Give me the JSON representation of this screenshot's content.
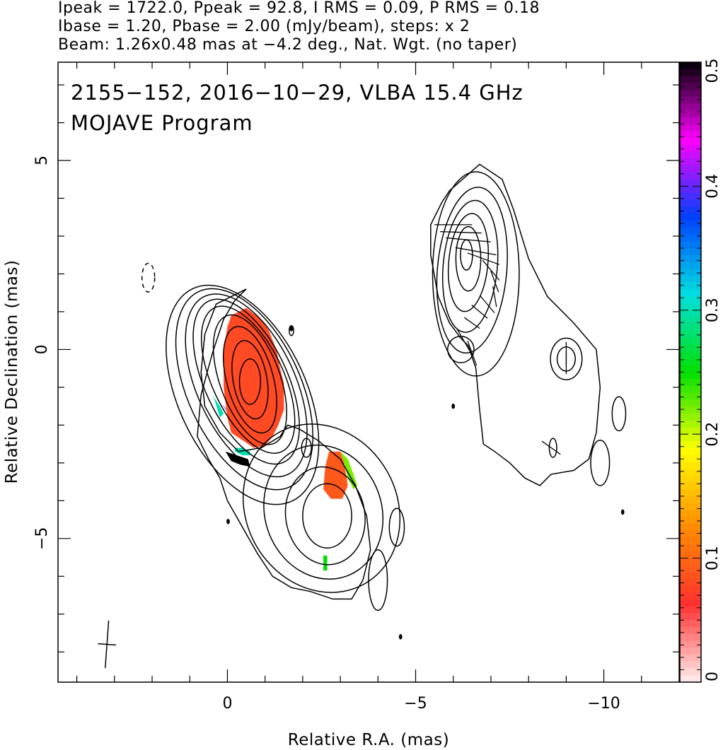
{
  "header": {
    "line1": "Ipeak = 1722.0, Ppeak = 92.8, I RMS = 0.09, P RMS = 0.18",
    "line2": "Ibase = 1.20, Pbase = 2.00 (mJy/beam), steps: x 2",
    "line3": "Beam: 1.26x0.48 mas at −4.2 deg., Nat. Wgt. (no taper)"
  },
  "chart_data": {
    "type": "heatmap",
    "title": "2155−152, 2016−10−29, VLBA 15.4 GHz",
    "subtitle": "MOJAVE Program",
    "xlabel": "Relative R.A. (mas)",
    "ylabel": "Relative Declination (mas)",
    "xlim": [
      4.5,
      -12.0
    ],
    "ylim": [
      -8.8,
      7.6
    ],
    "x_ticks": [
      {
        "value": 0,
        "label": "0"
      },
      {
        "value": -5,
        "label": "−5"
      },
      {
        "value": -10,
        "label": "−10"
      }
    ],
    "y_ticks": [
      {
        "value": 5,
        "label": "5"
      },
      {
        "value": 0,
        "label": "0"
      },
      {
        "value": -5,
        "label": "−5"
      }
    ],
    "colorbar": {
      "min": 0,
      "max": 0.5,
      "ticks": [
        {
          "value": 0,
          "label": "0"
        },
        {
          "value": 0.1,
          "label": "0.1"
        },
        {
          "value": 0.2,
          "label": "0.2"
        },
        {
          "value": 0.3,
          "label": "0.3"
        },
        {
          "value": 0.4,
          "label": "0.4"
        },
        {
          "value": 0.5,
          "label": "0.5"
        }
      ],
      "colors": [
        "#fff0f0",
        "#ff3030",
        "#ff8c00",
        "#ffff00",
        "#00e000",
        "#00e0e0",
        "#0040ff",
        "#ff00ff",
        "#000000"
      ]
    },
    "contours": [
      {
        "cx": -0.4,
        "cy": -1.2,
        "rx": 1.7,
        "ry": 3.1,
        "angle": -25
      },
      {
        "cx": -0.45,
        "cy": -1.05,
        "rx": 1.5,
        "ry": 2.85,
        "angle": -25
      },
      {
        "cx": -0.5,
        "cy": -0.95,
        "rx": 1.3,
        "ry": 2.6,
        "angle": -25
      },
      {
        "cx": -0.5,
        "cy": -0.85,
        "rx": 1.1,
        "ry": 2.35,
        "angle": -25
      },
      {
        "cx": -0.55,
        "cy": -0.8,
        "rx": 0.95,
        "ry": 2.1,
        "angle": -25
      },
      {
        "cx": -0.6,
        "cy": -0.8,
        "rx": 0.8,
        "ry": 1.8,
        "angle": -20
      },
      {
        "cx": -0.6,
        "cy": -0.8,
        "rx": 0.62,
        "ry": 1.45,
        "angle": -15
      },
      {
        "cx": -0.6,
        "cy": -0.8,
        "rx": 0.45,
        "ry": 1.05,
        "angle": -10
      },
      {
        "cx": -0.6,
        "cy": -0.85,
        "rx": 0.28,
        "ry": 0.6,
        "angle": 0
      },
      {
        "cx": -2.5,
        "cy": -4.2,
        "rx": 2.0,
        "ry": 2.3,
        "angle": -30
      },
      {
        "cx": -2.55,
        "cy": -4.3,
        "rx": 1.55,
        "ry": 1.8,
        "angle": -20
      },
      {
        "cx": -2.6,
        "cy": -4.4,
        "rx": 1.05,
        "ry": 1.3,
        "angle": -10
      },
      {
        "cx": -2.65,
        "cy": -4.4,
        "rx": 0.65,
        "ry": 0.85,
        "angle": 0
      },
      {
        "cx": -2.1,
        "cy": -2.6,
        "rx": 0.13,
        "ry": 0.25,
        "angle": 0
      },
      {
        "cx": -6.6,
        "cy": 2.0,
        "rx": 1.15,
        "ry": 2.7,
        "angle": 0
      },
      {
        "cx": -6.5,
        "cy": 2.1,
        "rx": 0.92,
        "ry": 2.2,
        "angle": 5
      },
      {
        "cx": -6.45,
        "cy": 2.2,
        "rx": 0.72,
        "ry": 1.75,
        "angle": 5
      },
      {
        "cx": -6.4,
        "cy": 2.3,
        "rx": 0.52,
        "ry": 1.3,
        "angle": 5
      },
      {
        "cx": -6.4,
        "cy": 2.4,
        "rx": 0.33,
        "ry": 0.85,
        "angle": 0
      },
      {
        "cx": -6.35,
        "cy": 2.5,
        "rx": 0.16,
        "ry": 0.4,
        "angle": 0
      },
      {
        "cx": -6.2,
        "cy": 0.0,
        "rx": 0.35,
        "ry": 0.35,
        "angle": 0
      },
      {
        "cx": -9.0,
        "cy": -0.25,
        "rx": 0.42,
        "ry": 0.55,
        "angle": 0
      },
      {
        "cx": -9.0,
        "cy": -0.25,
        "rx": 0.24,
        "ry": 0.32,
        "angle": 0
      },
      {
        "cx": -10.4,
        "cy": -1.7,
        "rx": 0.18,
        "ry": 0.45,
        "angle": 0
      },
      {
        "cx": -9.9,
        "cy": -3.0,
        "rx": 0.25,
        "ry": 0.6,
        "angle": 0
      },
      {
        "cx": -4.5,
        "cy": -4.7,
        "rx": 0.2,
        "ry": 0.5,
        "angle": 0
      },
      {
        "cx": -4.0,
        "cy": -6.1,
        "rx": 0.25,
        "ry": 0.8,
        "angle": 0
      },
      {
        "cx": -8.65,
        "cy": -2.6,
        "rx": 0.1,
        "ry": 0.25,
        "angle": 0
      },
      {
        "cx": -1.7,
        "cy": 0.5,
        "rx": 0.06,
        "ry": 0.13,
        "angle": 0
      }
    ],
    "contour_dashed": [
      {
        "cx": 2.1,
        "cy": 1.9,
        "rx": 0.17,
        "ry": 0.38,
        "angle": 0
      }
    ],
    "contour_outer_x": [
      -0.5,
      0.3,
      0.6,
      0.7,
      0.6,
      0.2,
      -0.3,
      -0.9,
      -1.4,
      -1.6,
      -1.9,
      -2.4,
      -3.0,
      -3.4,
      -3.7,
      -3.8,
      -3.6,
      -3.3,
      -2.8,
      -2.2,
      -1.7,
      -1.2,
      -0.8,
      -0.4,
      0.0,
      0.2,
      0.5,
      0.8,
      0.7,
      0.4,
      0.1,
      -0.2,
      -0.5
    ],
    "contour_outer_y": [
      1.6,
      1.2,
      0.4,
      -0.6,
      -1.5,
      -2.2,
      -2.7,
      -2.6,
      -2.3,
      -2.0,
      -2.1,
      -2.4,
      -2.9,
      -3.6,
      -4.4,
      -5.3,
      -6.1,
      -6.6,
      -6.6,
      -6.4,
      -6.3,
      -6.0,
      -5.4,
      -4.7,
      -4.0,
      -3.4,
      -2.9,
      -2.3,
      -1.2,
      -0.1,
      0.8,
      1.3,
      1.6
    ],
    "contour_west_x": [
      -5.9,
      -6.7,
      -7.3,
      -7.6,
      -8.0,
      -8.5,
      -9.2,
      -9.8,
      -9.9,
      -9.8,
      -9.6,
      -9.2,
      -8.6,
      -8.3,
      -7.9,
      -7.5,
      -7.1,
      -6.8,
      -6.7,
      -6.6,
      -6.4,
      -6.2,
      -5.9,
      -5.6,
      -5.4,
      -5.4,
      -5.7,
      -5.9
    ],
    "contour_west_y": [
      4.2,
      4.9,
      4.5,
      3.7,
      2.4,
      1.4,
      0.7,
      0.0,
      -1.0,
      -2.2,
      -2.9,
      -3.2,
      -3.3,
      -3.6,
      -3.4,
      -3.0,
      -2.7,
      -2.5,
      -1.6,
      -0.5,
      0.1,
      0.3,
      0.7,
      1.4,
      2.5,
      3.3,
      3.9,
      4.2
    ],
    "pol_regions": [
      {
        "x": [
          -0.1,
          -0.5,
          -0.9,
          -1.1,
          -1.3,
          -1.4,
          -1.5,
          -1.5,
          -1.35,
          -1.2,
          -1.0,
          -0.7,
          -0.4,
          -0.1,
          0.0,
          0.1,
          0.1,
          0.0,
          -0.1
        ],
        "y": [
          0.9,
          1.1,
          0.8,
          0.5,
          0.0,
          -0.5,
          -0.9,
          -1.6,
          -2.0,
          -2.3,
          -2.55,
          -2.6,
          -2.4,
          -2.2,
          -1.8,
          -1.0,
          0.0,
          0.6,
          0.9
        ],
        "value": 0.08
      },
      {
        "x": [
          -2.7,
          -3.0,
          -3.1,
          -3.2,
          -3.05,
          -2.75,
          -2.55,
          -2.6,
          -2.7
        ],
        "y": [
          -2.7,
          -2.7,
          -3.0,
          -3.6,
          -3.95,
          -3.95,
          -3.7,
          -3.1,
          -2.7
        ],
        "value": 0.09
      },
      {
        "x": [
          -3.0,
          -3.2,
          -3.35,
          -3.45,
          -3.35,
          -3.2,
          -3.1
        ],
        "y": [
          -2.7,
          -2.9,
          -3.3,
          -3.6,
          -3.7,
          -3.4,
          -3.0
        ],
        "value": 0.22
      },
      {
        "x": [
          0.5,
          0.4,
          0.2,
          0.1,
          0.2,
          0.35
        ],
        "y": [
          -1.0,
          -1.2,
          -1.5,
          -1.7,
          -1.8,
          -1.3
        ],
        "value": 0.3
      },
      {
        "x": [
          0.4,
          0.2,
          0.05,
          0.0,
          0.15
        ],
        "y": [
          -1.2,
          -1.4,
          -1.55,
          -1.65,
          -1.45
        ],
        "value": 0.4
      },
      {
        "x": [
          -0.2,
          -0.4,
          -0.6,
          -0.6,
          -0.4,
          -0.2
        ],
        "y": [
          -2.6,
          -2.6,
          -2.7,
          -2.8,
          -2.8,
          -2.7
        ],
        "value": 0.3
      },
      {
        "x": [
          0.05,
          -0.1,
          -0.4,
          -0.55,
          -0.6,
          -0.35,
          -0.1,
          0.05
        ],
        "y": [
          -2.7,
          -2.75,
          -2.85,
          -2.9,
          -3.1,
          -3.05,
          -2.95,
          -2.7
        ],
        "value": 0.5
      },
      {
        "x": [
          -2.55,
          -2.65,
          -2.65,
          -2.55
        ],
        "y": [
          -5.45,
          -5.45,
          -5.85,
          -5.85
        ],
        "value": 0.25
      }
    ],
    "evpa_vectors": [
      {
        "x": -6.0,
        "y": 3.3,
        "angle": 90,
        "len": 1.0
      },
      {
        "x": -6.2,
        "y": 3.1,
        "angle": 88,
        "len": 1.1
      },
      {
        "x": -6.4,
        "y": 2.9,
        "angle": 85,
        "len": 1.2
      },
      {
        "x": -6.6,
        "y": 2.6,
        "angle": 80,
        "len": 1.1
      },
      {
        "x": -6.8,
        "y": 2.4,
        "angle": 70,
        "len": 0.9
      },
      {
        "x": -7.0,
        "y": 2.1,
        "angle": 40,
        "len": 0.7
      },
      {
        "x": -7.1,
        "y": 1.8,
        "angle": 20,
        "len": 0.6
      },
      {
        "x": -7.1,
        "y": 1.4,
        "angle": 10,
        "len": 0.55
      },
      {
        "x": -6.9,
        "y": 1.2,
        "angle": 40,
        "len": 0.6
      },
      {
        "x": -6.7,
        "y": 1.0,
        "angle": 50,
        "len": 0.55
      },
      {
        "x": -6.5,
        "y": 0.7,
        "angle": 55,
        "len": 0.5
      },
      {
        "x": -6.3,
        "y": 0.2,
        "angle": 30,
        "len": 0.8
      },
      {
        "x": -6.5,
        "y": -0.1,
        "angle": 20,
        "len": 0.7
      },
      {
        "x": -9.0,
        "y": -0.1,
        "angle": 0,
        "len": 0.6
      },
      {
        "x": -9.0,
        "y": -0.35,
        "angle": 0,
        "len": 0.6
      },
      {
        "x": -8.6,
        "y": -2.6,
        "angle": 55,
        "len": 0.6
      }
    ],
    "specks": [
      {
        "x": -0.02,
        "y": -4.55
      },
      {
        "x": -6.0,
        "y": -1.5
      },
      {
        "x": -10.5,
        "y": -4.3
      },
      {
        "x": -4.6,
        "y": -7.6
      },
      {
        "x": -1.7,
        "y": 0.55
      }
    ],
    "beam": {
      "x": 3.2,
      "y": -7.8,
      "major": 1.26,
      "minor": 0.48,
      "pa": -4.2
    }
  }
}
